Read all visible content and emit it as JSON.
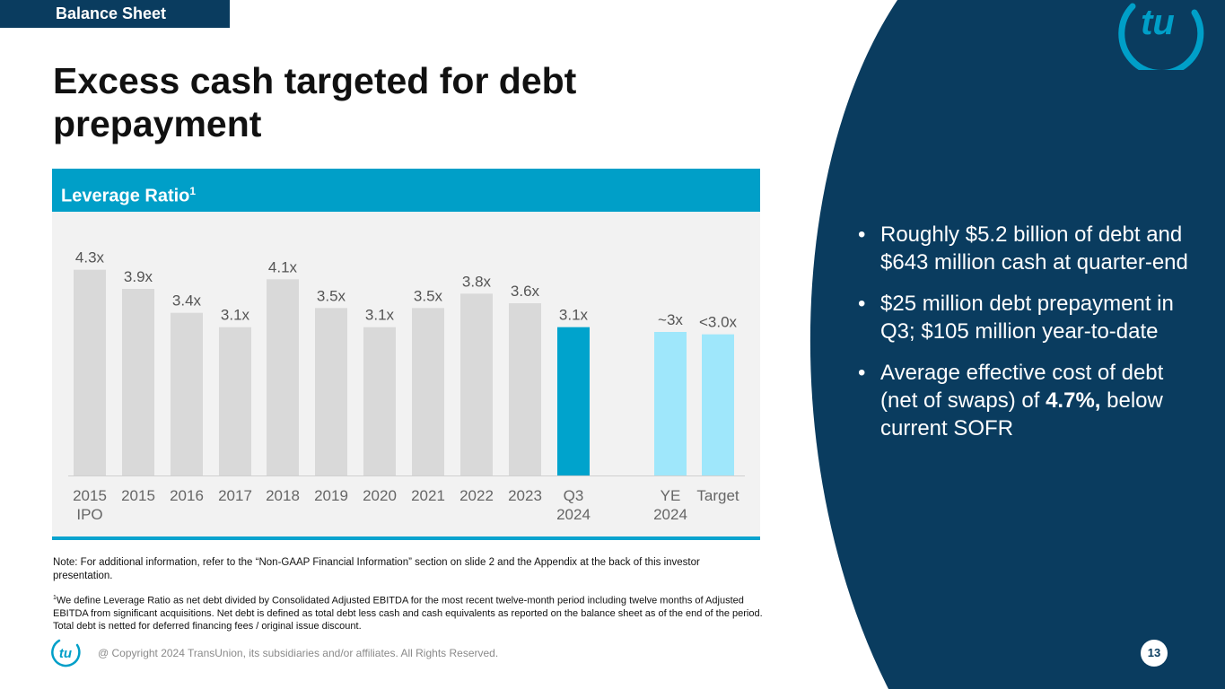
{
  "section_tag": "Balance Sheet",
  "title": "Excess cash targeted for debt prepayment",
  "panel": {
    "title": "Leverage Ratio",
    "title_sup": "1"
  },
  "bullets": {
    "b1": "Roughly $5.2 billion of debt and $643 million cash at quarter-end",
    "b2": "$25 million debt prepayment in Q3; $105 million year-to-date",
    "b3_pre": "Average effective cost of debt (net of swaps) of ",
    "b3_bold": "4.7%,",
    "b3_post": " below current SOFR"
  },
  "note": "Note: For additional information, refer to the “Non-GAAP Financial Information” section on slide 2 and the Appendix at the back of this investor presentation.",
  "footnote": {
    "sup": "1",
    "text": "We define Leverage Ratio as net debt divided by Consolidated Adjusted EBITDA for the most recent twelve-month period including twelve months of Adjusted EBITDA from significant acquisitions. Net debt is defined as total debt less cash and cash equivalents as reported on the balance sheet as of the end of the period. Total debt is netted for deferred financing fees / original issue discount."
  },
  "footer": {
    "copyright": "@ Copyright 2024 TransUnion, its subsidiaries and/or affiliates.  All Rights Reserved.",
    "page_number": "13"
  },
  "logo": {
    "text": "tu",
    "name": "TransUnion"
  },
  "colors": {
    "navy": "#0a3c5f",
    "teal": "#009fc8",
    "gray_bar": "#d9d9d9",
    "light_bar": "#9fe7fb",
    "highlight_bar": "#00a3cc"
  },
  "chart_data": {
    "type": "bar",
    "title": "Leverage Ratio",
    "ylabel": "",
    "ylim": [
      0,
      4.5
    ],
    "categories": [
      "2015 IPO",
      "2015",
      "2016",
      "2017",
      "2018",
      "2019",
      "2020",
      "2021",
      "2022",
      "2023",
      "Q3 2024",
      "YE 2024",
      "Target"
    ],
    "category_lines": [
      [
        "2015",
        "IPO"
      ],
      [
        "2015"
      ],
      [
        "2016"
      ],
      [
        "2017"
      ],
      [
        "2018"
      ],
      [
        "2019"
      ],
      [
        "2020"
      ],
      [
        "2021"
      ],
      [
        "2022"
      ],
      [
        "2023"
      ],
      [
        "Q3",
        "2024"
      ],
      [
        "YE",
        "2024"
      ],
      [
        "Target"
      ]
    ],
    "values": [
      4.3,
      3.9,
      3.4,
      3.1,
      4.1,
      3.5,
      3.1,
      3.5,
      3.8,
      3.6,
      3.1,
      3.0,
      2.95
    ],
    "labels": [
      "4.3x",
      "3.9x",
      "3.4x",
      "3.1x",
      "4.1x",
      "3.5x",
      "3.1x",
      "3.5x",
      "3.8x",
      "3.6x",
      "3.1x",
      "~3x",
      "<3.0x"
    ],
    "bar_style": [
      "historical",
      "historical",
      "historical",
      "historical",
      "historical",
      "historical",
      "historical",
      "historical",
      "historical",
      "historical",
      "current",
      "projected",
      "projected"
    ]
  }
}
